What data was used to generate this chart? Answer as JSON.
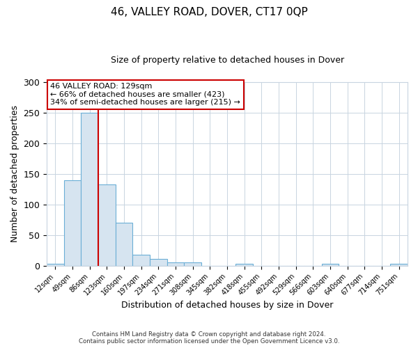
{
  "title": "46, VALLEY ROAD, DOVER, CT17 0QP",
  "subtitle": "Size of property relative to detached houses in Dover",
  "xlabel": "Distribution of detached houses by size in Dover",
  "ylabel": "Number of detached properties",
  "bin_labels": [
    "12sqm",
    "49sqm",
    "86sqm",
    "123sqm",
    "160sqm",
    "197sqm",
    "234sqm",
    "271sqm",
    "308sqm",
    "345sqm",
    "382sqm",
    "418sqm",
    "455sqm",
    "492sqm",
    "529sqm",
    "566sqm",
    "603sqm",
    "640sqm",
    "677sqm",
    "714sqm",
    "751sqm"
  ],
  "bar_values": [
    3,
    140,
    250,
    133,
    70,
    18,
    11,
    5,
    5,
    0,
    0,
    3,
    0,
    0,
    0,
    0,
    3,
    0,
    0,
    0,
    3
  ],
  "bar_color": "#d6e4f0",
  "bar_edge_color": "#6aaed6",
  "vline_pos": 2.5,
  "vline_color": "#cc0000",
  "ylim": [
    0,
    300
  ],
  "yticks": [
    0,
    50,
    100,
    150,
    200,
    250,
    300
  ],
  "annotation_title": "46 VALLEY ROAD: 129sqm",
  "annotation_line1": "← 66% of detached houses are smaller (423)",
  "annotation_line2": "34% of semi-detached houses are larger (215) →",
  "annotation_box_color": "#ffffff",
  "annotation_edge_color": "#cc0000",
  "footer_line1": "Contains HM Land Registry data © Crown copyright and database right 2024.",
  "footer_line2": "Contains public sector information licensed under the Open Government Licence v3.0.",
  "background_color": "#ffffff",
  "grid_color": "#c8d4e0"
}
